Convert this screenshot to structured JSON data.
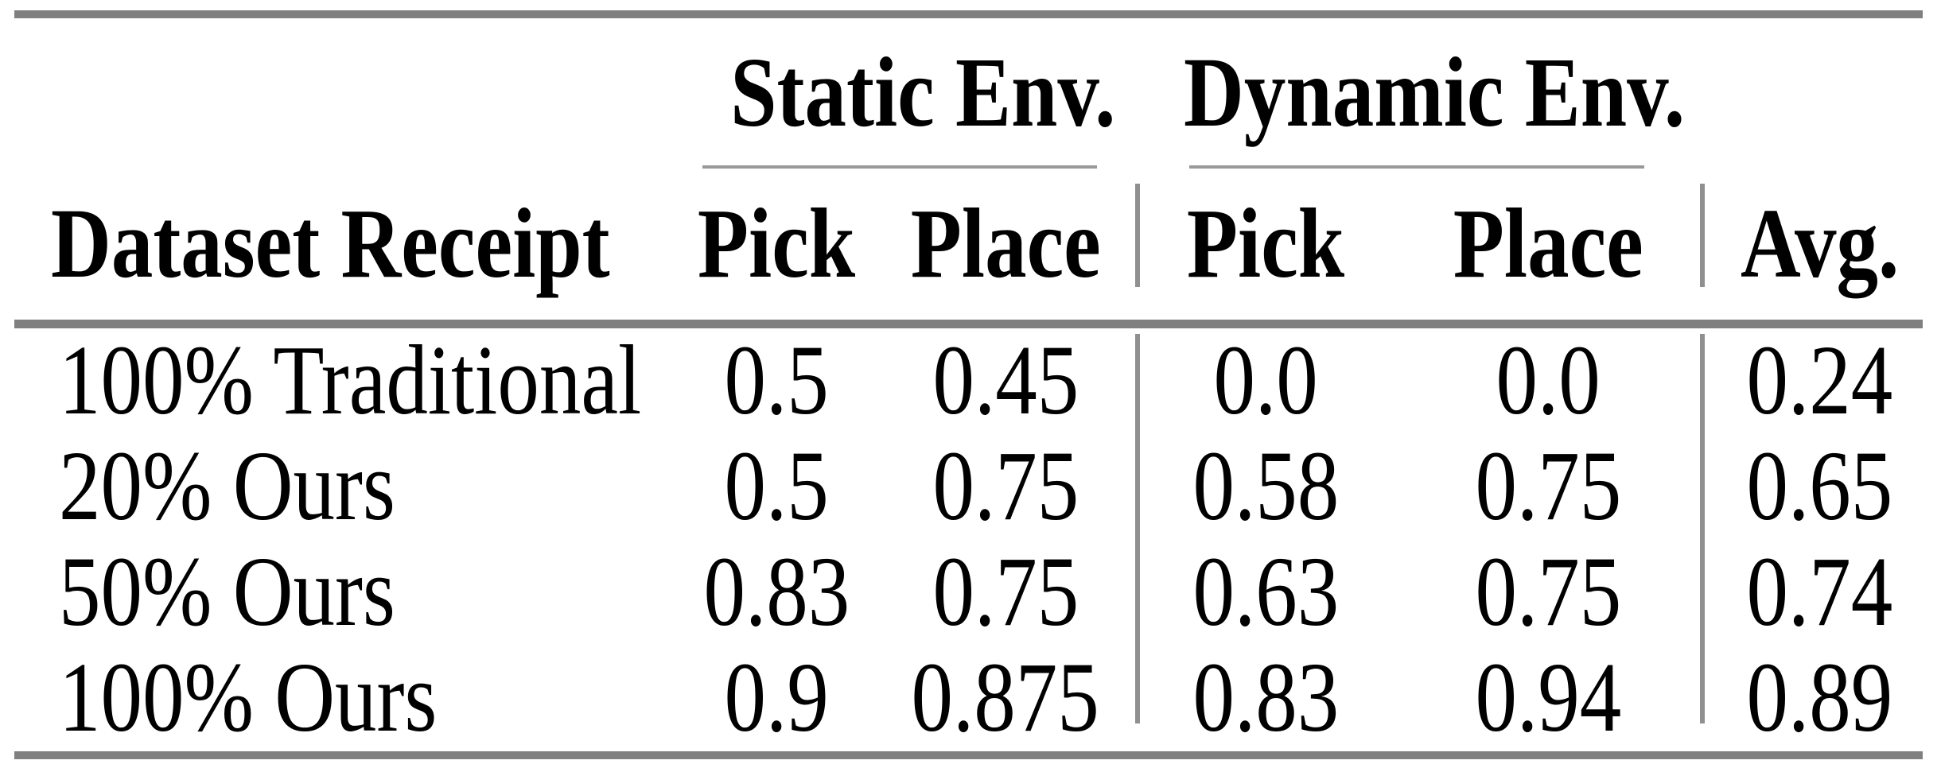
{
  "table": {
    "group_headers": [
      {
        "label": "Static Env."
      },
      {
        "label": "Dynamic Env."
      }
    ],
    "columns": [
      "Dataset Receipt",
      "Pick",
      "Place",
      "Pick",
      "Place",
      "Avg."
    ],
    "rows": [
      {
        "label": "100% Traditional",
        "values": [
          "0.5",
          "0.45",
          "0.0",
          "0.0",
          "0.24"
        ]
      },
      {
        "label": "20% Ours",
        "values": [
          "0.5",
          "0.75",
          "0.58",
          "0.75",
          "0.65"
        ]
      },
      {
        "label": "50% Ours",
        "values": [
          "0.83",
          "0.75",
          "0.63",
          "0.75",
          "0.74"
        ]
      },
      {
        "label": "100% Ours",
        "values": [
          "0.9",
          "0.875",
          "0.83",
          "0.94",
          "0.89"
        ]
      }
    ],
    "colors": {
      "thick_rule": "#808080",
      "thin_rule": "#999999",
      "vertical_rule": "#909090",
      "text": "#000000",
      "background": "#ffffff"
    }
  },
  "chart_data": {
    "type": "table",
    "title": "",
    "column_groups": [
      {
        "label": "Static Env.",
        "columns": [
          "Pick",
          "Place"
        ]
      },
      {
        "label": "Dynamic Env.",
        "columns": [
          "Pick",
          "Place"
        ]
      }
    ],
    "columns": [
      "Dataset Receipt",
      "Static Env. Pick",
      "Static Env. Place",
      "Dynamic Env. Pick",
      "Dynamic Env. Place",
      "Avg."
    ],
    "rows": [
      [
        "100% Traditional",
        0.5,
        0.45,
        0.0,
        0.0,
        0.24
      ],
      [
        "20% Ours",
        0.5,
        0.75,
        0.58,
        0.75,
        0.65
      ],
      [
        "50% Ours",
        0.83,
        0.75,
        0.63,
        0.75,
        0.74
      ],
      [
        "100% Ours",
        0.9,
        0.875,
        0.83,
        0.94,
        0.89
      ]
    ]
  }
}
